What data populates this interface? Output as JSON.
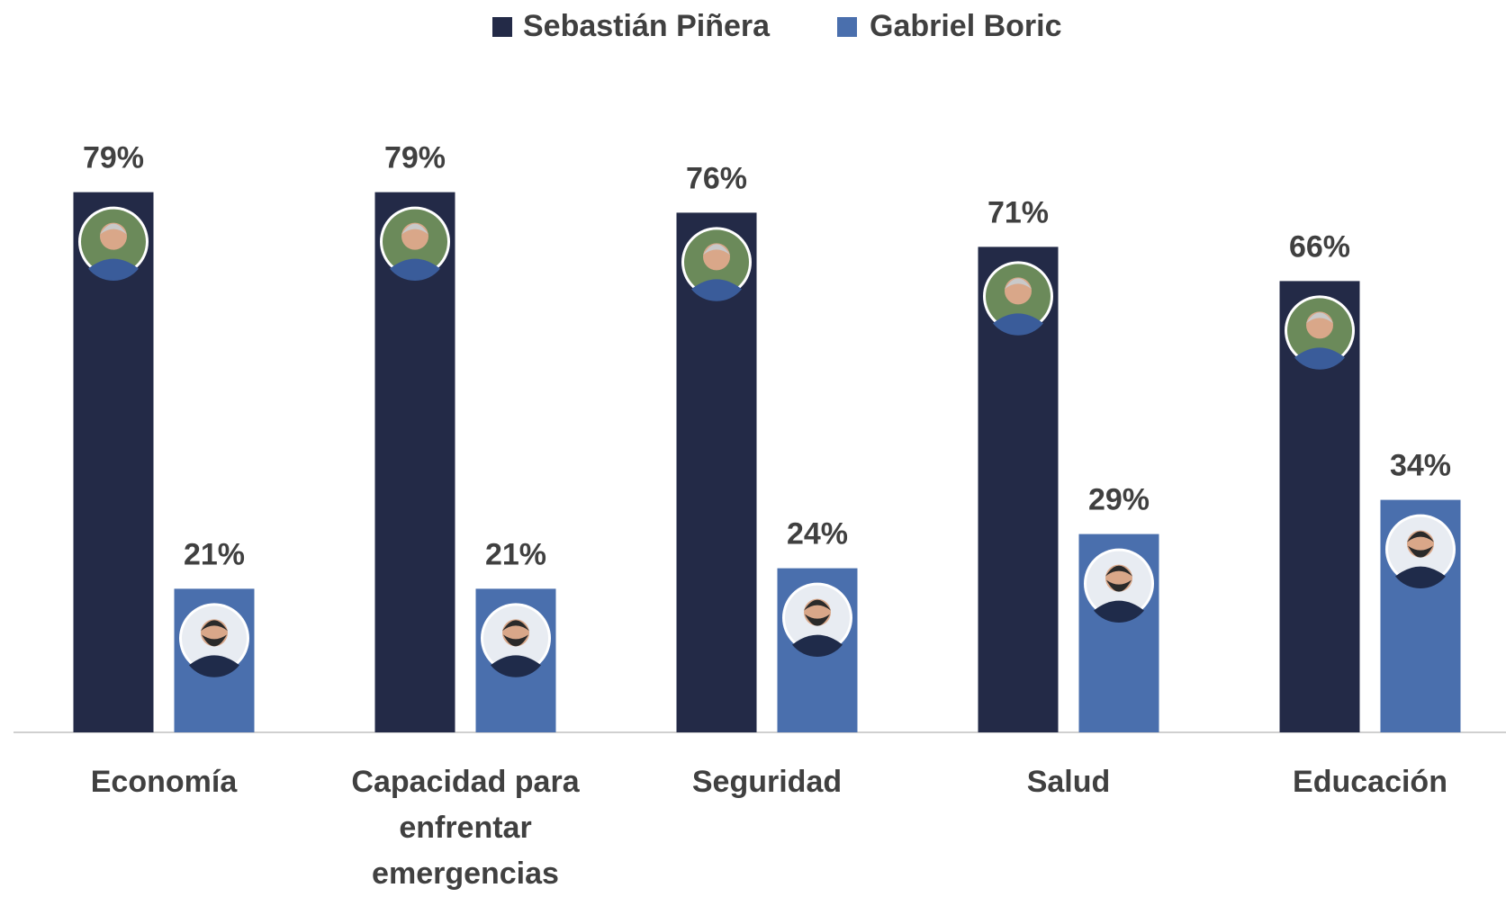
{
  "chart_data": {
    "type": "bar",
    "categories": [
      "Economía",
      "Capacidad para enfrentar emergencias",
      "Seguridad",
      "Salud",
      "Educación"
    ],
    "series": [
      {
        "name": "Sebastián Piñera",
        "color": "#232a47",
        "values": [
          79,
          79,
          76,
          71,
          66
        ],
        "value_labels": [
          "79%",
          "79%",
          "76%",
          "71%",
          "66%"
        ]
      },
      {
        "name": "Gabriel Boric",
        "color": "#4a6fad",
        "values": [
          21,
          21,
          24,
          29,
          34
        ],
        "value_labels": [
          "21%",
          "21%",
          "24%",
          "29%",
          "34%"
        ]
      }
    ],
    "legend": "top"
  }
}
